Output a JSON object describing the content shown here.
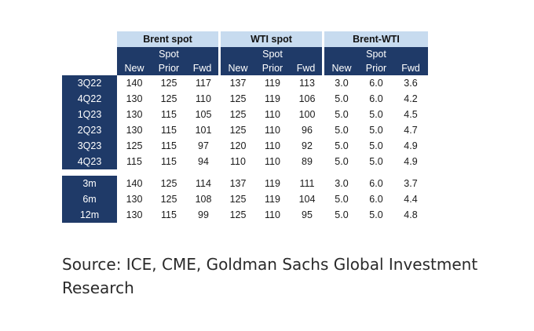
{
  "table": {
    "groups": [
      "Brent spot",
      "WTI spot",
      "Brent-WTI"
    ],
    "subheader": "Spot",
    "columns": [
      "New",
      "Prior",
      "Fwd"
    ],
    "quarterly_rows": [
      {
        "label": "3Q22",
        "values": [
          "140",
          "125",
          "117",
          "137",
          "119",
          "113",
          "3.0",
          "6.0",
          "3.6"
        ]
      },
      {
        "label": "4Q22",
        "values": [
          "130",
          "125",
          "110",
          "125",
          "119",
          "106",
          "5.0",
          "6.0",
          "4.2"
        ]
      },
      {
        "label": "1Q23",
        "values": [
          "130",
          "115",
          "105",
          "125",
          "110",
          "100",
          "5.0",
          "5.0",
          "4.5"
        ]
      },
      {
        "label": "2Q23",
        "values": [
          "130",
          "115",
          "101",
          "125",
          "110",
          "96",
          "5.0",
          "5.0",
          "4.7"
        ]
      },
      {
        "label": "3Q23",
        "values": [
          "125",
          "115",
          "97",
          "120",
          "110",
          "92",
          "5.0",
          "5.0",
          "4.9"
        ]
      },
      {
        "label": "4Q23",
        "values": [
          "115",
          "115",
          "94",
          "110",
          "110",
          "89",
          "5.0",
          "5.0",
          "4.9"
        ]
      }
    ],
    "horizon_rows": [
      {
        "label": "3m",
        "values": [
          "140",
          "125",
          "114",
          "137",
          "119",
          "111",
          "3.0",
          "6.0",
          "3.7"
        ]
      },
      {
        "label": "6m",
        "values": [
          "130",
          "125",
          "108",
          "125",
          "119",
          "104",
          "5.0",
          "6.0",
          "4.4"
        ]
      },
      {
        "label": "12m",
        "values": [
          "130",
          "115",
          "99",
          "125",
          "110",
          "95",
          "5.0",
          "5.0",
          "4.8"
        ]
      }
    ]
  },
  "source": {
    "text": "Source: ICE, CME, Goldman Sachs Global Investment Research"
  },
  "colors": {
    "header_dark": "#1f3a68",
    "header_light": "#c7dbef"
  }
}
